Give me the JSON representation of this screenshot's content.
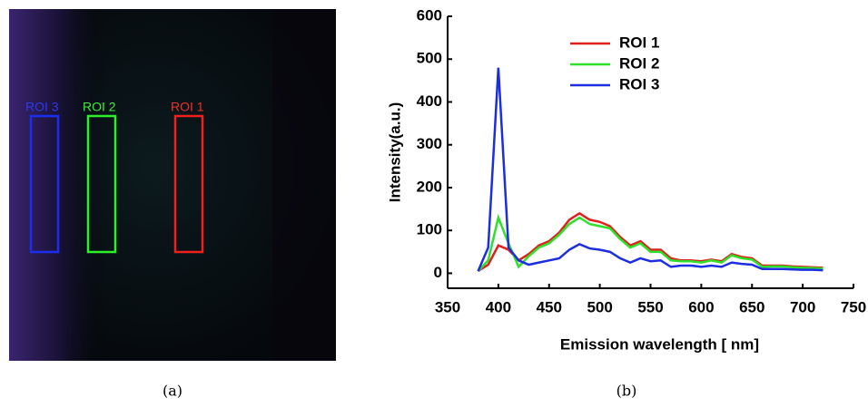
{
  "image": {
    "labels": [
      "ROI 3",
      "ROI 2",
      "ROI 1"
    ]
  },
  "captions": [
    "(a)",
    "(b)"
  ],
  "chart_data": {
    "type": "line",
    "xlabel": "Emission wavelength [ nm]",
    "ylabel": "Intensity(a.u.)",
    "x": [
      380,
      390,
      400,
      410,
      420,
      430,
      440,
      450,
      460,
      470,
      480,
      490,
      500,
      510,
      520,
      530,
      540,
      550,
      560,
      570,
      580,
      590,
      600,
      610,
      620,
      630,
      640,
      650,
      660,
      670,
      680,
      690,
      700,
      710,
      720
    ],
    "series": [
      {
        "name": "ROI 1",
        "color": "#e0201c",
        "values": [
          5,
          20,
          65,
          55,
          30,
          45,
          65,
          75,
          95,
          125,
          140,
          125,
          120,
          110,
          85,
          65,
          75,
          55,
          55,
          35,
          30,
          30,
          28,
          32,
          28,
          45,
          38,
          35,
          18,
          18,
          18,
          16,
          15,
          14,
          13
        ]
      },
      {
        "name": "ROI 2",
        "color": "#2ee02a",
        "values": [
          5,
          30,
          130,
          70,
          15,
          40,
          60,
          70,
          90,
          115,
          130,
          115,
          110,
          105,
          80,
          60,
          70,
          50,
          50,
          30,
          28,
          28,
          25,
          30,
          25,
          42,
          35,
          32,
          15,
          16,
          16,
          14,
          13,
          12,
          11
        ]
      },
      {
        "name": "ROI 3",
        "color": "#1c2ee0",
        "values": [
          5,
          60,
          480,
          60,
          30,
          20,
          25,
          30,
          35,
          55,
          68,
          58,
          55,
          50,
          35,
          25,
          35,
          28,
          30,
          15,
          18,
          18,
          15,
          18,
          15,
          25,
          22,
          20,
          10,
          10,
          10,
          9,
          8,
          8,
          7
        ]
      }
    ],
    "xlim": [
      350,
      750
    ],
    "ylim": [
      -35,
      600
    ],
    "xticks": [
      350,
      400,
      450,
      500,
      550,
      600,
      650,
      700,
      750
    ],
    "yticks": [
      0,
      100,
      200,
      300,
      400,
      500,
      600
    ],
    "legend": "upper right",
    "grid": false
  }
}
